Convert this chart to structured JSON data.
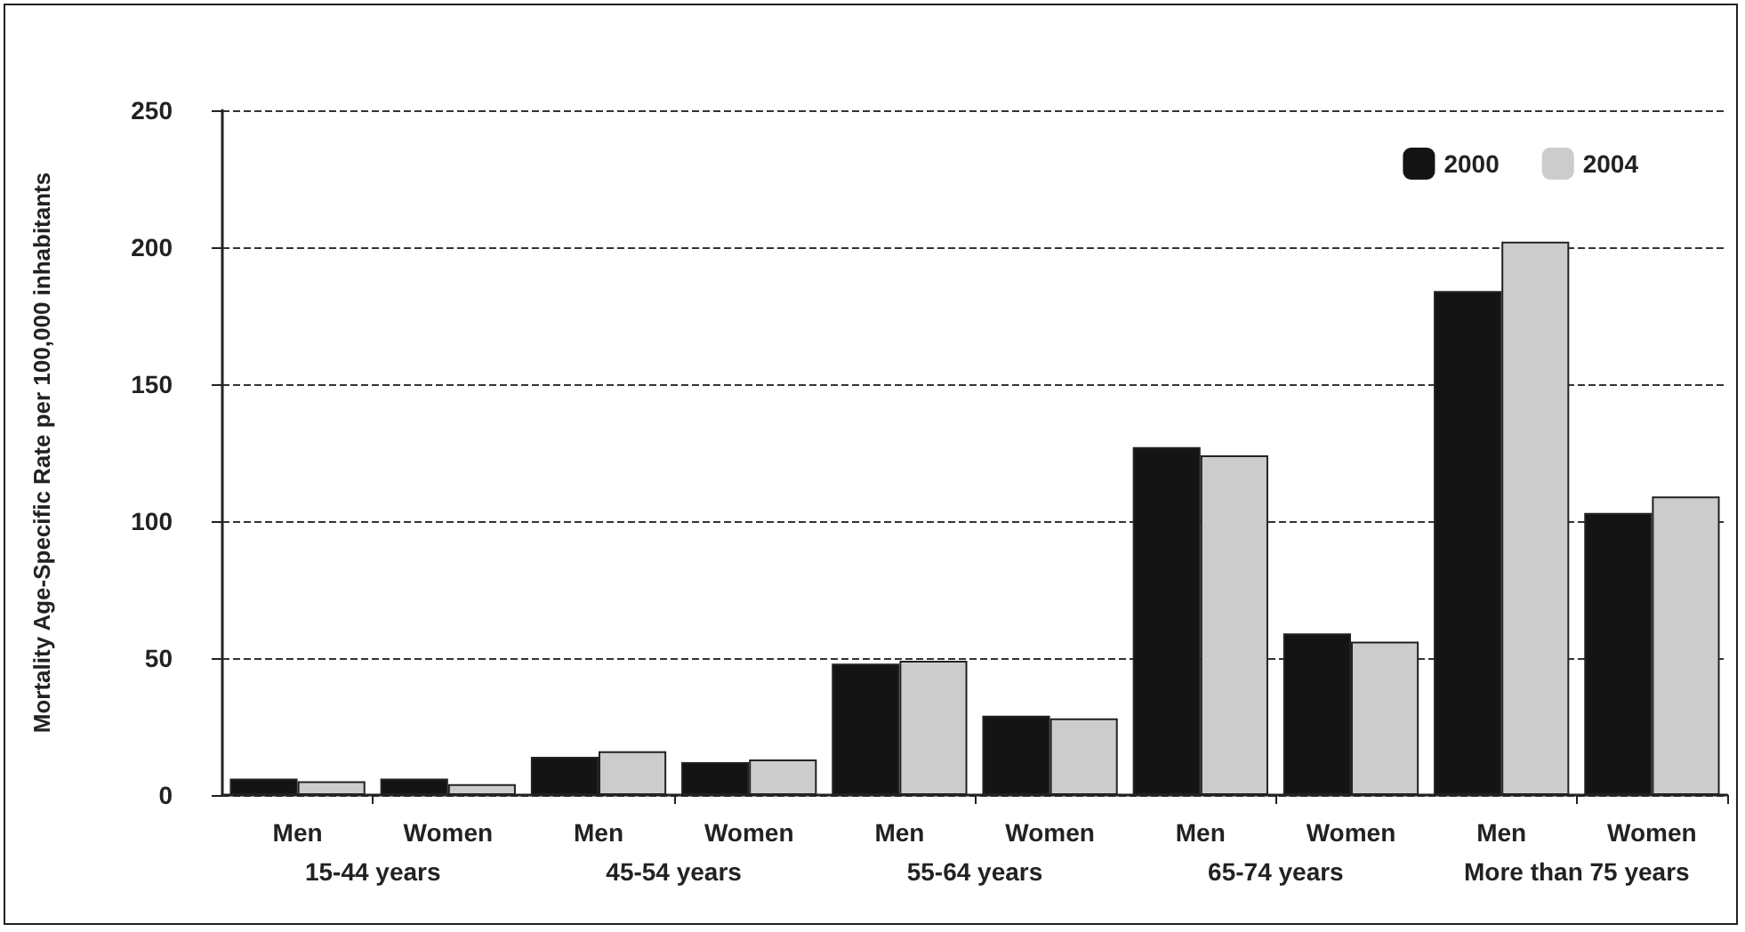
{
  "chart_data": {
    "type": "bar",
    "ylabel": "Mortality Age-Specific Rate per 100,000 inhabitants",
    "categories": [
      "Men",
      "Women",
      "Men",
      "Women",
      "Men",
      "Women",
      "Men",
      "Women",
      "Men",
      "Women"
    ],
    "series": [
      {
        "name": "2000",
        "color": "#141414",
        "values": [
          6,
          6,
          14,
          12,
          48,
          29,
          127,
          59,
          184,
          103
        ]
      },
      {
        "name": "2004",
        "color": "#cccccc",
        "values": [
          5,
          4,
          16,
          13,
          49,
          28,
          124,
          56,
          202,
          109
        ]
      }
    ],
    "annotations": [
      "15-44 years",
      "45-54 years",
      "55-64 years",
      "65-74 years",
      "More than 75 years"
    ],
    "ylim": [
      0,
      250
    ],
    "yticks": [
      0,
      50,
      100,
      150,
      200,
      250
    ],
    "grid": "y",
    "legend": "top right"
  }
}
